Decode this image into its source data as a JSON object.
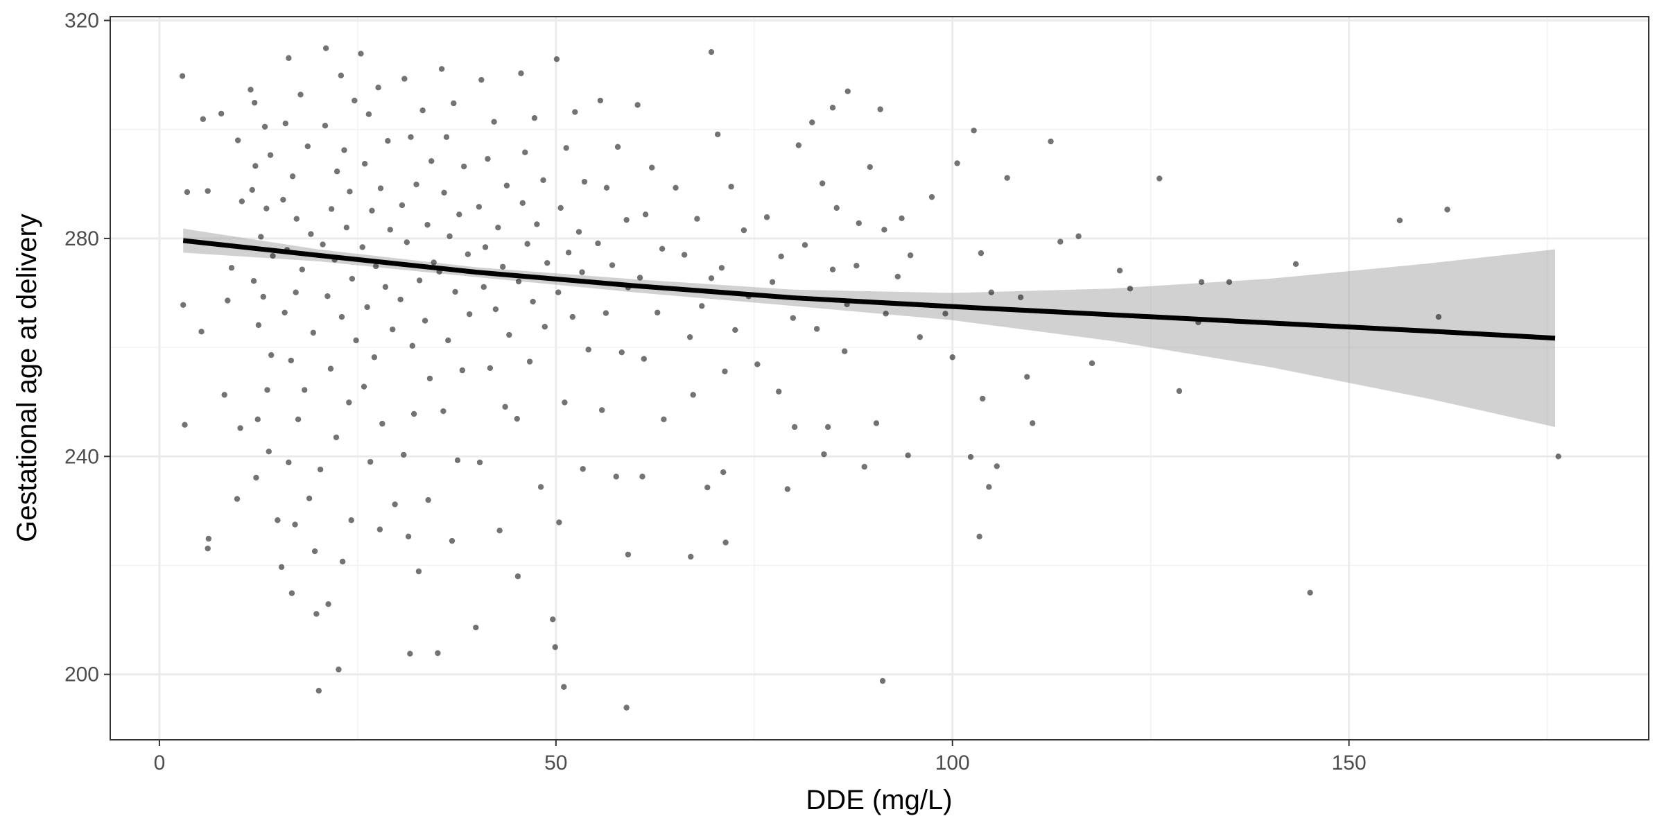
{
  "chart_data": {
    "type": "scatter",
    "title": "",
    "xlabel": "DDE (mg/L)",
    "ylabel": "Gestational age at delivery",
    "xlim": [
      -6.2,
      187.8
    ],
    "ylim": [
      188,
      320.7
    ],
    "x_ticks": [
      0,
      50,
      100,
      150
    ],
    "y_ticks": [
      200,
      240,
      280,
      320
    ],
    "x_tick_labels": [
      "0",
      "50",
      "100",
      "150"
    ],
    "y_tick_labels": [
      "200",
      "240",
      "280",
      "320"
    ],
    "grid": true,
    "legend": "none",
    "point_color": "#000000",
    "point_opacity": 0.55,
    "series": [
      {
        "points": [
          [
            2.9,
            309.8
          ],
          [
            3.5,
            288.5
          ],
          [
            3.0,
            267.8
          ],
          [
            3.2,
            245.8
          ],
          [
            5.5,
            301.9
          ],
          [
            6.1,
            288.7
          ],
          [
            5.3,
            262.9
          ],
          [
            6.2,
            224.9
          ],
          [
            6.1,
            223.1
          ],
          [
            7.8,
            302.9
          ],
          [
            9.9,
            298.0
          ],
          [
            10.4,
            286.8
          ],
          [
            9.1,
            274.6
          ],
          [
            8.6,
            268.6
          ],
          [
            8.2,
            251.3
          ],
          [
            10.2,
            245.2
          ],
          [
            9.8,
            232.2
          ],
          [
            11.5,
            307.3
          ],
          [
            12.0,
            304.9
          ],
          [
            13.3,
            300.5
          ],
          [
            14.0,
            295.3
          ],
          [
            12.1,
            293.3
          ],
          [
            11.7,
            288.9
          ],
          [
            13.5,
            285.5
          ],
          [
            12.8,
            280.3
          ],
          [
            14.3,
            276.8
          ],
          [
            11.9,
            272.2
          ],
          [
            13.1,
            269.3
          ],
          [
            12.5,
            264.1
          ],
          [
            14.1,
            258.6
          ],
          [
            13.6,
            252.2
          ],
          [
            12.4,
            246.8
          ],
          [
            13.8,
            240.9
          ],
          [
            12.2,
            236.1
          ],
          [
            14.9,
            228.3
          ],
          [
            15.4,
            219.7
          ],
          [
            16.3,
            313.1
          ],
          [
            17.8,
            306.4
          ],
          [
            15.9,
            301.1
          ],
          [
            18.7,
            296.9
          ],
          [
            16.8,
            291.4
          ],
          [
            15.6,
            287.1
          ],
          [
            17.3,
            283.6
          ],
          [
            19.1,
            280.8
          ],
          [
            16.1,
            277.9
          ],
          [
            18.0,
            274.3
          ],
          [
            17.2,
            270.1
          ],
          [
            15.8,
            266.4
          ],
          [
            19.4,
            262.7
          ],
          [
            16.6,
            257.6
          ],
          [
            18.3,
            252.2
          ],
          [
            17.5,
            246.8
          ],
          [
            16.3,
            238.9
          ],
          [
            18.9,
            232.3
          ],
          [
            17.1,
            227.5
          ],
          [
            19.6,
            222.6
          ],
          [
            16.7,
            214.9
          ],
          [
            19.8,
            211.1
          ],
          [
            21.0,
            314.9
          ],
          [
            22.9,
            309.9
          ],
          [
            24.6,
            305.3
          ],
          [
            20.9,
            300.7
          ],
          [
            23.3,
            296.2
          ],
          [
            22.4,
            292.3
          ],
          [
            24.0,
            288.6
          ],
          [
            21.7,
            285.4
          ],
          [
            23.6,
            282.0
          ],
          [
            20.6,
            278.9
          ],
          [
            22.1,
            276.1
          ],
          [
            24.3,
            272.6
          ],
          [
            21.2,
            269.4
          ],
          [
            23.0,
            265.6
          ],
          [
            24.8,
            261.3
          ],
          [
            21.6,
            256.1
          ],
          [
            23.9,
            249.9
          ],
          [
            22.3,
            243.5
          ],
          [
            20.3,
            237.6
          ],
          [
            24.2,
            228.3
          ],
          [
            23.1,
            220.7
          ],
          [
            21.3,
            212.9
          ],
          [
            22.6,
            200.9
          ],
          [
            20.1,
            197.0
          ],
          [
            25.4,
            313.9
          ],
          [
            27.6,
            307.7
          ],
          [
            26.4,
            302.8
          ],
          [
            28.8,
            297.9
          ],
          [
            25.9,
            293.7
          ],
          [
            27.9,
            289.2
          ],
          [
            26.8,
            285.1
          ],
          [
            29.1,
            281.6
          ],
          [
            25.6,
            278.4
          ],
          [
            27.3,
            274.9
          ],
          [
            28.5,
            271.1
          ],
          [
            26.2,
            267.4
          ],
          [
            29.4,
            263.3
          ],
          [
            27.1,
            258.2
          ],
          [
            25.8,
            252.8
          ],
          [
            28.1,
            246.0
          ],
          [
            26.6,
            239.0
          ],
          [
            29.7,
            231.2
          ],
          [
            27.8,
            226.6
          ],
          [
            30.9,
            309.3
          ],
          [
            33.2,
            303.5
          ],
          [
            31.7,
            298.6
          ],
          [
            34.3,
            294.2
          ],
          [
            32.4,
            289.9
          ],
          [
            30.6,
            286.1
          ],
          [
            33.8,
            282.5
          ],
          [
            31.2,
            279.3
          ],
          [
            34.6,
            275.6
          ],
          [
            32.8,
            272.3
          ],
          [
            30.4,
            268.8
          ],
          [
            33.5,
            264.9
          ],
          [
            31.9,
            260.3
          ],
          [
            34.1,
            254.3
          ],
          [
            32.1,
            247.8
          ],
          [
            30.8,
            240.3
          ],
          [
            33.9,
            232.0
          ],
          [
            31.4,
            225.3
          ],
          [
            32.7,
            218.9
          ],
          [
            31.6,
            203.8
          ],
          [
            35.6,
            311.1
          ],
          [
            37.1,
            304.8
          ],
          [
            36.2,
            298.6
          ],
          [
            38.4,
            293.2
          ],
          [
            35.9,
            288.4
          ],
          [
            37.8,
            284.4
          ],
          [
            36.6,
            280.4
          ],
          [
            38.9,
            277.1
          ],
          [
            35.3,
            273.9
          ],
          [
            37.3,
            270.2
          ],
          [
            39.1,
            266.1
          ],
          [
            36.4,
            261.3
          ],
          [
            38.2,
            255.8
          ],
          [
            35.8,
            248.3
          ],
          [
            37.6,
            239.3
          ],
          [
            36.9,
            224.5
          ],
          [
            35.1,
            203.9
          ],
          [
            40.6,
            309.1
          ],
          [
            42.2,
            301.4
          ],
          [
            41.4,
            294.6
          ],
          [
            43.8,
            289.7
          ],
          [
            40.3,
            285.8
          ],
          [
            42.7,
            282.0
          ],
          [
            41.1,
            278.4
          ],
          [
            43.3,
            274.8
          ],
          [
            40.9,
            271.1
          ],
          [
            42.4,
            267.0
          ],
          [
            44.1,
            262.3
          ],
          [
            41.7,
            256.2
          ],
          [
            43.6,
            249.1
          ],
          [
            40.4,
            238.9
          ],
          [
            42.9,
            226.4
          ],
          [
            39.9,
            208.6
          ],
          [
            45.6,
            310.3
          ],
          [
            47.3,
            302.1
          ],
          [
            46.1,
            295.8
          ],
          [
            48.4,
            290.7
          ],
          [
            45.8,
            286.5
          ],
          [
            47.6,
            282.6
          ],
          [
            46.4,
            279.0
          ],
          [
            48.9,
            275.5
          ],
          [
            45.3,
            272.1
          ],
          [
            47.1,
            268.4
          ],
          [
            48.6,
            263.8
          ],
          [
            46.7,
            257.4
          ],
          [
            45.1,
            246.9
          ],
          [
            48.1,
            234.4
          ],
          [
            45.2,
            218.0
          ],
          [
            50.1,
            312.9
          ],
          [
            52.4,
            303.2
          ],
          [
            51.3,
            296.6
          ],
          [
            53.6,
            290.4
          ],
          [
            50.6,
            285.6
          ],
          [
            52.9,
            281.2
          ],
          [
            51.6,
            277.4
          ],
          [
            53.3,
            273.8
          ],
          [
            50.3,
            270.1
          ],
          [
            52.1,
            265.6
          ],
          [
            54.1,
            259.6
          ],
          [
            51.1,
            249.9
          ],
          [
            53.4,
            237.7
          ],
          [
            50.4,
            227.9
          ],
          [
            49.6,
            210.1
          ],
          [
            49.9,
            205.0
          ],
          [
            51.0,
            197.7
          ],
          [
            55.6,
            305.3
          ],
          [
            57.8,
            296.8
          ],
          [
            56.4,
            289.3
          ],
          [
            58.9,
            283.4
          ],
          [
            55.3,
            279.1
          ],
          [
            57.1,
            275.1
          ],
          [
            59.1,
            271.0
          ],
          [
            56.3,
            266.3
          ],
          [
            58.3,
            259.1
          ],
          [
            55.8,
            248.5
          ],
          [
            57.6,
            236.3
          ],
          [
            59.1,
            222.0
          ],
          [
            58.9,
            193.9
          ],
          [
            60.3,
            304.5
          ],
          [
            62.1,
            293.0
          ],
          [
            61.3,
            284.4
          ],
          [
            63.4,
            278.1
          ],
          [
            60.6,
            272.8
          ],
          [
            62.8,
            266.4
          ],
          [
            61.1,
            257.9
          ],
          [
            63.6,
            246.8
          ],
          [
            60.9,
            236.3
          ],
          [
            65.1,
            289.3
          ],
          [
            67.8,
            283.6
          ],
          [
            66.2,
            277.0
          ],
          [
            69.6,
            272.7
          ],
          [
            68.4,
            267.6
          ],
          [
            66.9,
            261.9
          ],
          [
            67.3,
            251.3
          ],
          [
            69.1,
            234.3
          ],
          [
            67.0,
            221.6
          ],
          [
            69.6,
            314.2
          ],
          [
            70.4,
            299.1
          ],
          [
            72.1,
            289.5
          ],
          [
            73.7,
            281.5
          ],
          [
            70.9,
            274.6
          ],
          [
            74.3,
            269.4
          ],
          [
            72.6,
            263.2
          ],
          [
            75.4,
            256.9
          ],
          [
            71.3,
            255.6
          ],
          [
            71.1,
            237.1
          ],
          [
            71.4,
            224.2
          ],
          [
            76.6,
            283.9
          ],
          [
            78.4,
            276.7
          ],
          [
            77.3,
            272.0
          ],
          [
            79.9,
            265.4
          ],
          [
            78.1,
            251.9
          ],
          [
            80.1,
            245.4
          ],
          [
            79.2,
            234.0
          ],
          [
            80.6,
            297.1
          ],
          [
            82.3,
            301.3
          ],
          [
            83.6,
            290.1
          ],
          [
            85.4,
            285.6
          ],
          [
            81.4,
            278.8
          ],
          [
            84.9,
            274.3
          ],
          [
            86.7,
            267.9
          ],
          [
            82.9,
            263.4
          ],
          [
            84.3,
            245.4
          ],
          [
            83.8,
            240.4
          ],
          [
            84.9,
            304.0
          ],
          [
            86.8,
            307.0
          ],
          [
            88.2,
            282.8
          ],
          [
            89.6,
            293.1
          ],
          [
            87.9,
            275.0
          ],
          [
            86.4,
            259.3
          ],
          [
            88.9,
            238.1
          ],
          [
            90.9,
            303.7
          ],
          [
            91.4,
            281.6
          ],
          [
            93.1,
            273.0
          ],
          [
            91.6,
            266.2
          ],
          [
            93.6,
            283.7
          ],
          [
            94.7,
            276.9
          ],
          [
            95.9,
            261.9
          ],
          [
            94.4,
            240.2
          ],
          [
            90.4,
            246.1
          ],
          [
            91.2,
            198.8
          ],
          [
            97.4,
            287.6
          ],
          [
            99.1,
            266.2
          ],
          [
            100.0,
            258.2
          ],
          [
            100.6,
            293.8
          ],
          [
            102.7,
            299.8
          ],
          [
            103.6,
            277.3
          ],
          [
            104.9,
            270.1
          ],
          [
            103.8,
            250.6
          ],
          [
            104.6,
            234.4
          ],
          [
            105.6,
            238.2
          ],
          [
            102.3,
            239.9
          ],
          [
            103.4,
            225.3
          ],
          [
            106.9,
            291.1
          ],
          [
            108.6,
            269.2
          ],
          [
            110.1,
            246.1
          ],
          [
            109.4,
            254.6
          ],
          [
            112.4,
            297.8
          ],
          [
            113.6,
            279.4
          ],
          [
            115.9,
            280.4
          ],
          [
            117.6,
            257.1
          ],
          [
            121.1,
            274.1
          ],
          [
            122.4,
            270.8
          ],
          [
            126.1,
            291.0
          ],
          [
            128.6,
            252.0
          ],
          [
            131.4,
            272.0
          ],
          [
            131.0,
            264.6
          ],
          [
            134.9,
            272.0
          ],
          [
            143.3,
            275.3
          ],
          [
            145.1,
            215.0
          ],
          [
            156.4,
            283.3
          ],
          [
            161.3,
            265.6
          ],
          [
            162.4,
            285.3
          ],
          [
            176.4,
            240.0
          ]
        ]
      }
    ],
    "fit_line": {
      "x": [
        3,
        20,
        40,
        60,
        80,
        100,
        120,
        140,
        160,
        176
      ],
      "y": [
        279.6,
        276.9,
        273.8,
        271.3,
        269.1,
        267.5,
        266.0,
        264.5,
        263.0,
        261.7
      ]
    },
    "confidence_band": {
      "x": [
        3,
        20,
        40,
        60,
        80,
        100,
        120,
        140,
        160,
        176
      ],
      "upper": [
        281.8,
        278.0,
        274.7,
        272.5,
        270.6,
        270.0,
        270.8,
        272.6,
        275.4,
        278.0
      ],
      "lower": [
        277.4,
        275.8,
        272.9,
        270.1,
        267.6,
        265.0,
        261.2,
        256.4,
        250.6,
        245.4
      ]
    }
  }
}
